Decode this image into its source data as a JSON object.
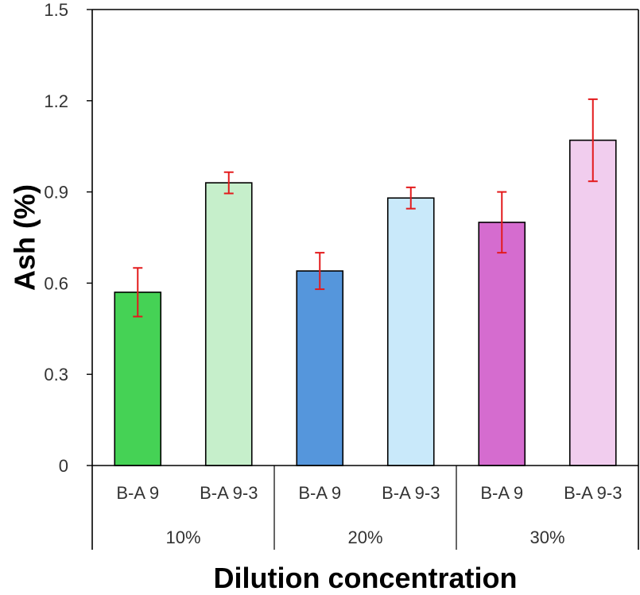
{
  "chart_data": {
    "type": "bar",
    "title": "",
    "xlabel": "Dilution concentration",
    "ylabel": "Ash (%)",
    "ylim": [
      0,
      1.5
    ],
    "yticks": [
      0,
      0.3,
      0.6,
      0.9,
      1.2,
      1.5
    ],
    "ytick_labels": [
      "0",
      "0.3",
      "0.6",
      "0.9",
      "1.2",
      "1.5"
    ],
    "grid": false,
    "groups": [
      "10%",
      "20%",
      "30%"
    ],
    "categories": [
      "B-A 9",
      "B-A 9-3",
      "B-A 9",
      "B-A 9-3",
      "B-A 9",
      "B-A 9-3"
    ],
    "values": [
      0.57,
      0.93,
      0.64,
      0.88,
      0.8,
      1.07
    ],
    "errors": [
      0.08,
      0.035,
      0.06,
      0.035,
      0.1,
      0.135
    ],
    "colors": [
      "#45d255",
      "#c6efcb",
      "#5596dc",
      "#c9e9fa",
      "#d56ccf",
      "#f1cdee"
    ],
    "error_color": "#e31a1c"
  }
}
